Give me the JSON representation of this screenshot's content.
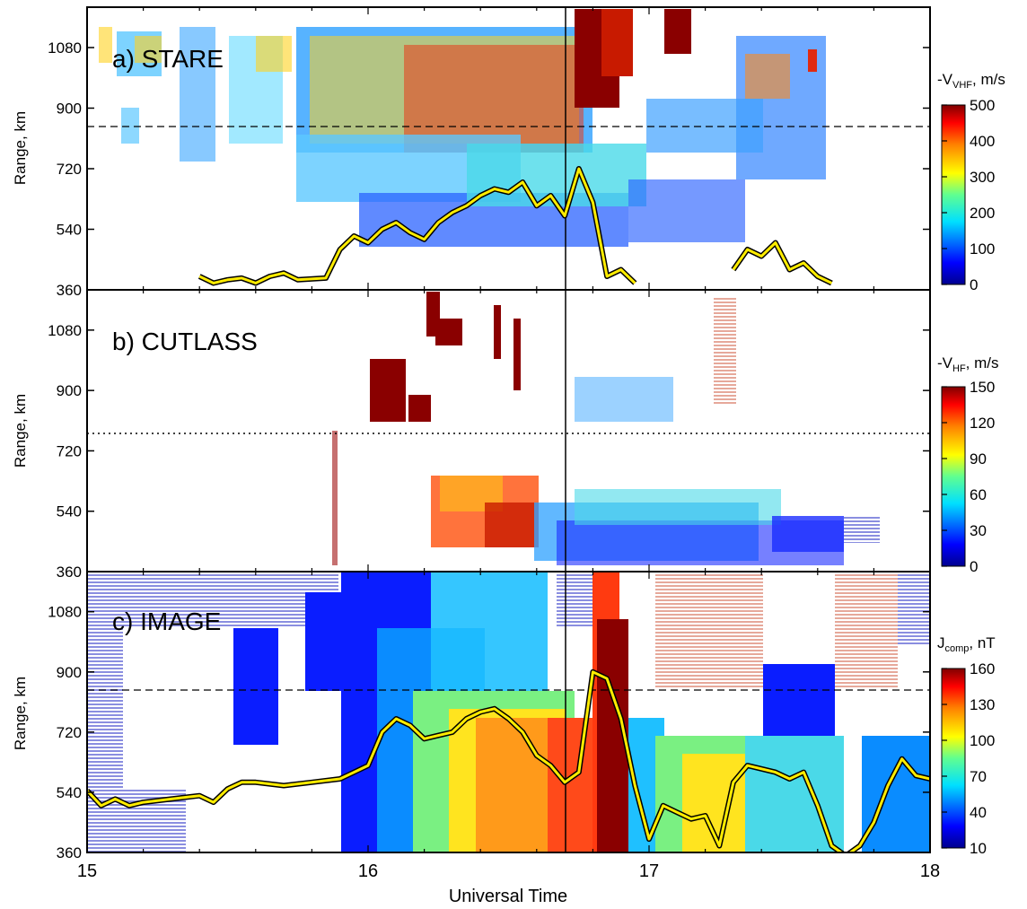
{
  "chart_data": [
    {
      "type": "heatmap",
      "panel_label": "a)  STARE",
      "ylabel": "Range, km",
      "yticks": [
        "360",
        "540",
        "720",
        "900",
        "1080"
      ],
      "ylim": [
        360,
        1200
      ],
      "xlim": [
        15,
        18
      ],
      "colorbar": {
        "label_main": "-V",
        "label_sub": "VHF",
        "label_suffix": ", m/s",
        "ticks": [
          "0",
          "100",
          "200",
          "300",
          "400",
          "500"
        ],
        "range": [
          0,
          500
        ]
      },
      "dashed_line_range": 860,
      "vertical_line_time": 16.7,
      "overlay_curve": {
        "name": "",
        "x": [
          15.4,
          15.45,
          15.5,
          15.55,
          15.6,
          15.65,
          15.7,
          15.75,
          15.85,
          15.9,
          15.95,
          16.0,
          16.05,
          16.1,
          16.15,
          16.2,
          16.25,
          16.3,
          16.35,
          16.4,
          16.45,
          16.5,
          16.55,
          16.6,
          16.65,
          16.7,
          16.75,
          16.8,
          16.85,
          16.9,
          16.95
        ],
        "y": [
          400,
          380,
          390,
          395,
          380,
          400,
          410,
          390,
          395,
          480,
          520,
          500,
          540,
          560,
          530,
          510,
          560,
          590,
          610,
          640,
          660,
          650,
          680,
          610,
          640,
          580,
          720,
          620,
          400,
          420,
          380
        ]
      },
      "overlay_curve_2": {
        "name": "",
        "x": [
          17.3,
          17.35,
          17.4,
          17.45,
          17.5,
          17.55,
          17.6,
          17.65
        ],
        "y": [
          420,
          480,
          460,
          500,
          420,
          440,
          400,
          380
        ]
      }
    },
    {
      "type": "heatmap",
      "panel_label": "b)  CUTLASS",
      "ylabel": "Range, km",
      "yticks": [
        "360",
        "540",
        "720",
        "900",
        "1080"
      ],
      "ylim": [
        360,
        1200
      ],
      "xlim": [
        15,
        18
      ],
      "colorbar": {
        "label_main": "-V",
        "label_sub": "HF",
        "label_suffix": ", m/s",
        "ticks": [
          "0",
          "30",
          "60",
          "90",
          "120",
          "150"
        ],
        "range": [
          0,
          150
        ]
      },
      "dotted_line_range": 790,
      "vertical_line_time": 16.7
    },
    {
      "type": "heatmap",
      "panel_label": "c)  IMAGE",
      "ylabel": "Range, km",
      "xlabel": "Universal Time",
      "xticks": [
        "15",
        "16",
        "17",
        "18"
      ],
      "yticks": [
        "360",
        "540",
        "720",
        "900",
        "1080"
      ],
      "ylim": [
        360,
        1200
      ],
      "xlim": [
        15,
        18
      ],
      "colorbar": {
        "label_main": "J",
        "label_sub": "comp",
        "label_suffix": ", nT",
        "ticks": [
          "10",
          "40",
          "70",
          "100",
          "130",
          "160"
        ],
        "range": [
          10,
          160
        ]
      },
      "dashed_line_range": 860,
      "vertical_line_time": 16.7,
      "overlay_curve": {
        "name": "",
        "x": [
          15.0,
          15.05,
          15.1,
          15.15,
          15.2,
          15.3,
          15.4,
          15.45,
          15.5,
          15.55,
          15.6,
          15.7,
          15.8,
          15.9,
          15.95,
          16.0,
          16.05,
          16.1,
          16.15,
          16.2,
          16.25,
          16.3,
          16.35,
          16.4,
          16.45,
          16.5,
          16.55,
          16.6,
          16.65,
          16.7,
          16.75,
          16.8,
          16.85,
          16.9,
          16.95,
          17.0,
          17.05,
          17.1,
          17.15,
          17.2,
          17.25,
          17.3,
          17.35,
          17.4,
          17.45,
          17.5,
          17.55,
          17.6,
          17.65,
          17.7,
          17.75,
          17.8,
          17.85,
          17.9,
          17.95,
          18.0
        ],
        "y": [
          545,
          500,
          520,
          500,
          510,
          520,
          530,
          510,
          550,
          570,
          570,
          560,
          570,
          580,
          600,
          620,
          720,
          760,
          740,
          700,
          710,
          720,
          760,
          780,
          790,
          760,
          720,
          650,
          620,
          570,
          600,
          900,
          880,
          760,
          560,
          400,
          500,
          480,
          460,
          470,
          380,
          570,
          620,
          610,
          600,
          580,
          600,
          500,
          380,
          350,
          380,
          450,
          560,
          640,
          590,
          580
        ]
      }
    }
  ]
}
